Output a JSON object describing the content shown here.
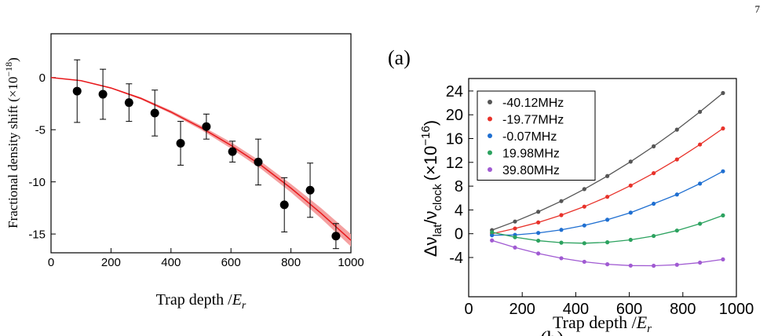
{
  "page_number": "7",
  "panel_labels": [
    "(a)",
    "(b)"
  ],
  "chart_data": [
    {
      "type": "scatter",
      "xlabel_parts": [
        "Trap depth /",
        "E",
        "r"
      ],
      "ylabel_parts": [
        "Fractional density shift  (×10",
        "−18",
        ")"
      ],
      "xlim": [
        0,
        1000
      ],
      "ylim": [
        -16.8,
        4.2
      ],
      "xticks": [
        0,
        200,
        400,
        600,
        800,
        1000
      ],
      "yticks": [
        0,
        -5,
        -10,
        -15
      ],
      "x": [
        87,
        173,
        260,
        346,
        432,
        518,
        605,
        691,
        778,
        864,
        950
      ],
      "values": [
        -1.3,
        -1.6,
        -2.4,
        -3.4,
        -6.3,
        -4.7,
        -7.1,
        -8.1,
        -12.2,
        -10.8,
        -15.2
      ],
      "errors": [
        3.0,
        2.4,
        1.8,
        2.2,
        2.1,
        1.2,
        1.0,
        2.2,
        2.6,
        2.6,
        1.2
      ],
      "color": "#000000",
      "fit": {
        "color": "#e8191c",
        "band_color": "#f4a0a0",
        "x": [
          0,
          100,
          200,
          300,
          400,
          500,
          600,
          700,
          800,
          900,
          1000
        ],
        "values": [
          0,
          -0.3,
          -1.0,
          -2.0,
          -3.3,
          -4.8,
          -6.5,
          -8.4,
          -10.6,
          -13.0,
          -15.6
        ],
        "lower": [
          0,
          -0.32,
          -1.06,
          -2.1,
          -3.45,
          -5.0,
          -6.8,
          -8.75,
          -11.0,
          -13.5,
          -16.2
        ],
        "upper": [
          0,
          -0.28,
          -0.94,
          -1.9,
          -3.15,
          -4.6,
          -6.2,
          -8.05,
          -10.2,
          -12.5,
          -15.0
        ]
      }
    },
    {
      "type": "scatter",
      "xlabel_parts": [
        "Trap depth /",
        "E",
        "r"
      ],
      "ylabel_parts": [
        "Δν",
        "lat",
        "/ν",
        "clock",
        "(×10",
        "−16",
        ")"
      ],
      "xlim": [
        0,
        1000
      ],
      "ylim": [
        -10.6,
        26.1
      ],
      "xticks": [
        0,
        200,
        400,
        600,
        800,
        1000
      ],
      "yticks": [
        -4,
        0,
        4,
        8,
        12,
        16,
        20,
        24
      ],
      "x": [
        87,
        173,
        260,
        346,
        432,
        518,
        605,
        691,
        778,
        864,
        950
      ],
      "series": [
        {
          "name": "-40.12MHz",
          "color": "#555555",
          "values": [
            0.6,
            2.05,
            3.69,
            5.48,
            7.5,
            9.7,
            12.12,
            14.7,
            17.5,
            20.5,
            23.66
          ]
        },
        {
          "name": "-19.77MHz",
          "color": "#e8322a",
          "values": [
            -0.01,
            0.88,
            1.9,
            3.13,
            4.56,
            6.21,
            8.1,
            10.18,
            12.49,
            15.0,
            17.7
          ]
        },
        {
          "name": "-0.07MHz",
          "color": "#1f6fd1",
          "values": [
            -0.25,
            -0.2,
            0.13,
            0.65,
            1.39,
            2.35,
            3.54,
            5.04,
            6.59,
            8.43,
            10.5
          ]
        },
        {
          "name": "19.98MHz",
          "color": "#2ca25f",
          "values": [
            0.25,
            -0.58,
            -1.17,
            -1.51,
            -1.6,
            -1.44,
            -1.03,
            -0.38,
            0.53,
            1.68,
            3.08
          ]
        },
        {
          "name": "39.80MHz",
          "color": "#a05ad2",
          "values": [
            -1.13,
            -2.32,
            -3.32,
            -4.12,
            -4.72,
            -5.14,
            -5.36,
            -5.39,
            -5.22,
            -4.86,
            -4.31
          ]
        }
      ]
    }
  ]
}
